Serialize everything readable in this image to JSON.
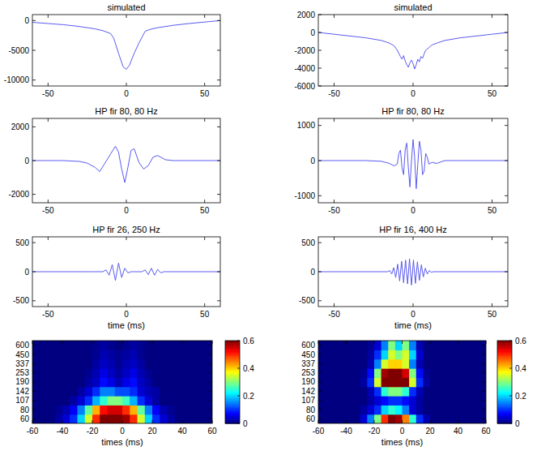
{
  "chart_data": [
    {
      "type": "line",
      "title": "simulated",
      "color": "#5a5af0",
      "x": [
        -60,
        -50,
        -40,
        -30,
        -20,
        -15,
        -10,
        -8,
        -5,
        -2,
        0,
        2,
        5,
        8,
        10,
        12,
        15,
        20,
        30,
        40,
        50,
        60
      ],
      "values": [
        -300,
        -500,
        -700,
        -1000,
        -1400,
        -1700,
        -2200,
        -3000,
        -5500,
        -7800,
        -8200,
        -7500,
        -5500,
        -3800,
        -2800,
        -1800,
        -1500,
        -1200,
        -800,
        -500,
        -250,
        0
      ],
      "xlim": [
        -60,
        60
      ],
      "xticks": [
        -50,
        0,
        50
      ],
      "ylim": [
        -11000,
        1000
      ],
      "yticks": [
        0,
        -5000,
        -10000
      ]
    },
    {
      "type": "line",
      "title": "simulated",
      "color": "#5a5af0",
      "x": [
        -60,
        -50,
        -40,
        -30,
        -20,
        -15,
        -12,
        -10,
        -8,
        -7,
        -6,
        -5,
        -4,
        -3,
        -2,
        -1,
        0,
        1,
        2,
        3,
        4,
        5,
        6,
        7,
        8,
        10,
        12,
        15,
        20,
        30,
        40,
        50,
        60
      ],
      "values": [
        0,
        -200,
        -400,
        -600,
        -900,
        -1200,
        -1500,
        -2000,
        -2700,
        -3000,
        -2600,
        -3200,
        -3600,
        -3900,
        -3400,
        -3100,
        -3500,
        -4100,
        -3600,
        -3000,
        -3300,
        -2700,
        -2900,
        -2400,
        -2000,
        -1700,
        -1400,
        -1200,
        -900,
        -600,
        -400,
        -200,
        0
      ],
      "xlim": [
        -60,
        60
      ],
      "xticks": [
        -50,
        0,
        50
      ],
      "ylim": [
        -6000,
        2000
      ],
      "yticks": [
        2000,
        0,
        -2000,
        -4000,
        -6000
      ]
    },
    {
      "type": "line",
      "title": "HP fir 80, 80 Hz",
      "color": "#5a5af0",
      "x": [
        -60,
        -40,
        -30,
        -25,
        -20,
        -17,
        -14,
        -10,
        -7,
        -5,
        -3,
        -1,
        1,
        3,
        5,
        8,
        11,
        14,
        17,
        20,
        25,
        30,
        40,
        60
      ],
      "values": [
        0,
        0,
        -50,
        -150,
        -400,
        -650,
        -200,
        400,
        850,
        500,
        -500,
        -1300,
        -400,
        600,
        700,
        -100,
        -500,
        -300,
        200,
        300,
        50,
        0,
        0,
        0
      ],
      "xlim": [
        -60,
        60
      ],
      "xticks": [
        -50,
        0,
        50
      ],
      "ylim": [
        -2500,
        2500
      ],
      "yticks": [
        -2000,
        0,
        2000
      ]
    },
    {
      "type": "line",
      "title": "HP fir 80, 80 Hz",
      "color": "#5a5af0",
      "x": [
        -60,
        -30,
        -20,
        -15,
        -12,
        -10,
        -9,
        -8,
        -7,
        -6,
        -5,
        -4,
        -3,
        -2,
        -1,
        0,
        1,
        2,
        3,
        4,
        5,
        6,
        7,
        8,
        9,
        10,
        12,
        15,
        20,
        30,
        60
      ],
      "values": [
        0,
        0,
        -20,
        -80,
        -150,
        -100,
        200,
        300,
        -200,
        -400,
        300,
        500,
        -200,
        -750,
        0,
        600,
        100,
        -800,
        -100,
        550,
        300,
        -400,
        -300,
        200,
        100,
        -100,
        -50,
        -80,
        0,
        0,
        0
      ],
      "xlim": [
        -60,
        60
      ],
      "xticks": [
        -50,
        0,
        50
      ],
      "ylim": [
        -1200,
        1200
      ],
      "yticks": [
        -1000,
        0,
        1000
      ]
    },
    {
      "type": "line",
      "title": "HP fir 26, 250 Hz",
      "xlabel": "time (ms)",
      "color": "#5a5af0",
      "x": [
        -60,
        -20,
        -15,
        -13,
        -11,
        -9,
        -7,
        -5,
        -3,
        -1,
        1,
        3,
        5,
        10,
        12,
        14,
        16,
        18,
        20,
        22,
        24,
        60
      ],
      "values": [
        0,
        0,
        0,
        30,
        -60,
        120,
        -150,
        150,
        -100,
        60,
        -20,
        0,
        0,
        0,
        30,
        -50,
        60,
        -60,
        40,
        -20,
        0,
        0
      ],
      "xlim": [
        -60,
        60
      ],
      "xticks": [
        -50,
        0,
        50
      ],
      "ylim": [
        -600,
        600
      ],
      "yticks": [
        -500,
        0,
        500
      ]
    },
    {
      "type": "line",
      "title": "HP fir 16, 400 Hz",
      "xlabel": "time (ms)",
      "color": "#5a5af0",
      "x": [
        -60,
        -16,
        -14.75,
        -13.5,
        -12.25,
        -11,
        -9.75,
        -8.5,
        -7.25,
        -6,
        -4.75,
        -3.5,
        -2.25,
        -1,
        0.25,
        1.5,
        2.75,
        4,
        5.25,
        6.5,
        7.75,
        9,
        10.25,
        11.5,
        12.75,
        60
      ],
      "values": [
        0,
        0,
        20,
        -40,
        70,
        -100,
        130,
        -160,
        180,
        -190,
        200,
        -210,
        220,
        -230,
        200,
        -200,
        170,
        -150,
        120,
        -90,
        60,
        -40,
        20,
        -10,
        0,
        0
      ],
      "xlim": [
        -60,
        60
      ],
      "xticks": [
        -50,
        0,
        50
      ],
      "ylim": [
        -600,
        600
      ],
      "yticks": [
        -500,
        0,
        500
      ]
    },
    {
      "type": "heatmap",
      "xlabel": "times (ms)",
      "log": "y",
      "x": [
        -57.5,
        -52.5,
        -47.5,
        -42.5,
        -37.5,
        -32.5,
        -27.5,
        -22.5,
        -17.5,
        -12.5,
        -7.5,
        -2.5,
        2.5,
        7.5,
        12.5,
        17.5,
        22.5,
        27.5,
        32.5,
        37.5,
        42.5,
        47.5,
        52.5,
        57.5
      ],
      "y": [
        60,
        80,
        107,
        142,
        190,
        253,
        337,
        450,
        600
      ],
      "cells": [
        [
          0,
          0,
          0,
          0.02,
          0.05,
          0.1,
          0.2,
          0.35,
          0.5,
          0.6,
          0.62,
          0.62,
          0.58,
          0.5,
          0.35,
          0.2,
          0.1,
          0.05,
          0.02,
          0,
          0,
          0,
          0,
          0
        ],
        [
          0,
          0,
          0,
          0.01,
          0.03,
          0.07,
          0.15,
          0.28,
          0.42,
          0.52,
          0.55,
          0.55,
          0.5,
          0.42,
          0.28,
          0.15,
          0.07,
          0.03,
          0.01,
          0,
          0,
          0,
          0,
          0
        ],
        [
          0,
          0,
          0,
          0,
          0,
          0.02,
          0.05,
          0.1,
          0.18,
          0.25,
          0.3,
          0.3,
          0.26,
          0.18,
          0.1,
          0.05,
          0.02,
          0,
          0,
          0,
          0,
          0,
          0,
          0
        ],
        [
          0,
          0,
          0,
          0,
          0,
          0,
          0.02,
          0.05,
          0.1,
          0.15,
          0.15,
          0.12,
          0.12,
          0.1,
          0.05,
          0.03,
          0.02,
          0,
          0,
          0,
          0,
          0,
          0,
          0
        ],
        [
          0,
          0,
          0,
          0,
          0,
          0,
          0,
          0.02,
          0.04,
          0.08,
          0.06,
          0.03,
          0.06,
          0.08,
          0.04,
          0.02,
          0,
          0,
          0,
          0,
          0,
          0,
          0,
          0
        ],
        [
          0,
          0,
          0,
          0,
          0,
          0,
          0,
          0.01,
          0.03,
          0.06,
          0.04,
          0.02,
          0.04,
          0.06,
          0.03,
          0.01,
          0,
          0,
          0,
          0,
          0,
          0,
          0,
          0
        ],
        [
          0,
          0,
          0,
          0,
          0,
          0,
          0,
          0,
          0.02,
          0.04,
          0.03,
          0.01,
          0.03,
          0.04,
          0.02,
          0,
          0,
          0,
          0,
          0,
          0,
          0,
          0,
          0
        ],
        [
          0,
          0,
          0,
          0,
          0,
          0,
          0,
          0,
          0.01,
          0.03,
          0.02,
          0.01,
          0.02,
          0.03,
          0.01,
          0,
          0,
          0,
          0,
          0,
          0,
          0,
          0,
          0
        ],
        [
          0,
          0,
          0,
          0,
          0,
          0,
          0,
          0,
          0.01,
          0.02,
          0.01,
          0,
          0.01,
          0.02,
          0.01,
          0,
          0,
          0,
          0,
          0,
          0,
          0,
          0,
          0
        ]
      ],
      "xlim": [
        -60,
        60
      ],
      "xticks": [
        -60,
        -40,
        -20,
        0,
        20,
        40,
        60
      ],
      "ylim": [
        52,
        693
      ],
      "yticks": [
        60,
        80,
        107,
        142,
        190,
        253,
        337,
        450,
        600
      ],
      "colorbar": {
        "range": [
          0,
          0.6
        ],
        "ticks": [
          0,
          0.2,
          0.4,
          0.6
        ]
      }
    },
    {
      "type": "heatmap",
      "xlabel": "times (ms)",
      "log": "y",
      "x": [
        -57.5,
        -52.5,
        -47.5,
        -42.5,
        -37.5,
        -32.5,
        -27.5,
        -22.5,
        -17.5,
        -12.5,
        -7.5,
        -2.5,
        2.5,
        7.5,
        12.5,
        17.5,
        22.5,
        27.5,
        32.5,
        37.5,
        42.5,
        47.5,
        52.5,
        57.5
      ],
      "y": [
        60,
        80,
        107,
        142,
        190,
        253,
        337,
        450,
        600
      ],
      "cells": [
        [
          0,
          0,
          0,
          0,
          0,
          0,
          0.05,
          0.15,
          0.3,
          0.5,
          0.6,
          0.58,
          0.45,
          0.25,
          0.1,
          0.03,
          0,
          0,
          0,
          0,
          0,
          0,
          0,
          0
        ],
        [
          0,
          0,
          0,
          0,
          0,
          0,
          0.02,
          0.05,
          0.1,
          0.2,
          0.25,
          0.22,
          0.15,
          0.05,
          0.02,
          0,
          0,
          0,
          0,
          0,
          0,
          0,
          0,
          0
        ],
        [
          0,
          0,
          0,
          0,
          0,
          0,
          0,
          0.02,
          0.05,
          0.08,
          0.1,
          0.1,
          0.08,
          0.05,
          0.02,
          0,
          0,
          0,
          0,
          0,
          0,
          0,
          0,
          0
        ],
        [
          0,
          0,
          0,
          0,
          0,
          0,
          0,
          0.03,
          0.1,
          0.25,
          0.3,
          0.3,
          0.25,
          0.1,
          0.03,
          0,
          0,
          0,
          0,
          0,
          0,
          0,
          0,
          0
        ],
        [
          0,
          0,
          0,
          0,
          0,
          0,
          0.02,
          0.1,
          0.35,
          0.6,
          0.62,
          0.62,
          0.6,
          0.35,
          0.1,
          0.02,
          0,
          0,
          0,
          0,
          0,
          0,
          0,
          0
        ],
        [
          0,
          0,
          0,
          0,
          0,
          0,
          0.01,
          0.08,
          0.3,
          0.58,
          0.62,
          0.62,
          0.55,
          0.3,
          0.08,
          0.01,
          0,
          0,
          0,
          0,
          0,
          0,
          0,
          0
        ],
        [
          0,
          0,
          0,
          0,
          0,
          0,
          0,
          0.03,
          0.15,
          0.35,
          0.4,
          0.4,
          0.35,
          0.15,
          0.03,
          0,
          0,
          0,
          0,
          0,
          0,
          0,
          0,
          0
        ],
        [
          0,
          0,
          0,
          0,
          0,
          0,
          0,
          0.02,
          0.1,
          0.2,
          0.35,
          0.3,
          0.35,
          0.2,
          0.05,
          0,
          0,
          0,
          0,
          0,
          0,
          0,
          0,
          0
        ],
        [
          0,
          0,
          0,
          0,
          0,
          0,
          0,
          0.01,
          0.05,
          0.15,
          0.3,
          0.2,
          0.3,
          0.15,
          0.03,
          0,
          0,
          0,
          0,
          0,
          0,
          0,
          0,
          0
        ]
      ],
      "xlim": [
        -60,
        60
      ],
      "xticks": [
        -60,
        -40,
        -20,
        0,
        20,
        40,
        60
      ],
      "ylim": [
        52,
        693
      ],
      "yticks": [
        60,
        80,
        107,
        142,
        190,
        253,
        337,
        450,
        600
      ],
      "colorbar": {
        "range": [
          0,
          0.6
        ],
        "ticks": [
          0,
          0.2,
          0.4,
          0.6
        ]
      }
    }
  ]
}
